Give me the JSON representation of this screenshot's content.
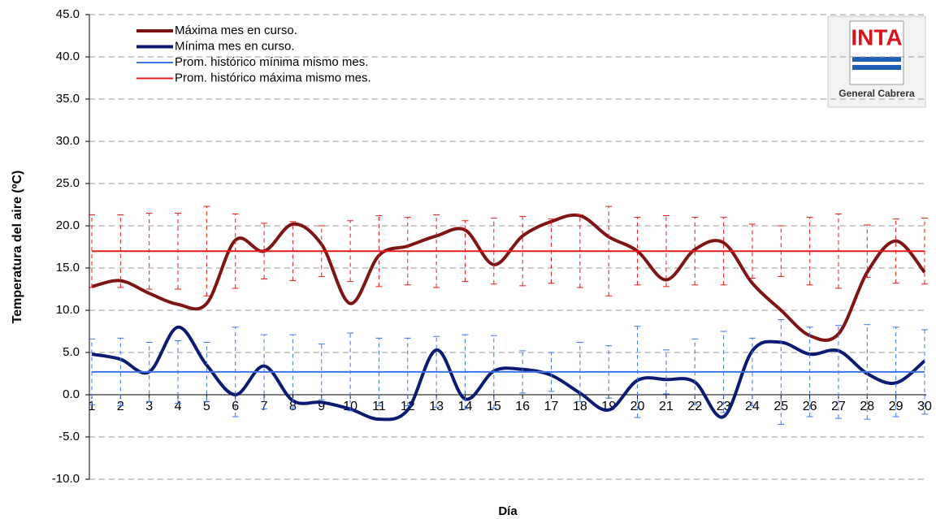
{
  "chart_data": {
    "type": "line",
    "ylabel": "Temperatura del aire (ºC)",
    "xlabel": "Día",
    "logo_text": "INTA",
    "logo_caption": "General Cabrera",
    "categories": [
      "1",
      "2",
      "3",
      "4",
      "5",
      "6",
      "7",
      "8",
      "9",
      "10",
      "11",
      "12",
      "13",
      "14",
      "15",
      "16",
      "17",
      "18",
      "19",
      "20",
      "21",
      "22",
      "23",
      "24",
      "25",
      "26",
      "27",
      "28",
      "29",
      "30"
    ],
    "series": [
      {
        "name": "Máxima mes en curso.",
        "color": "#7f1414",
        "width": 4,
        "values": [
          12.8,
          13.5,
          12.0,
          10.7,
          10.8,
          18.3,
          17.0,
          20.2,
          17.8,
          10.8,
          16.5,
          17.6,
          18.8,
          19.5,
          15.4,
          18.8,
          20.5,
          21.2,
          18.7,
          17.0,
          13.6,
          17.2,
          18.0,
          13.2,
          10.0,
          7.0,
          7.2,
          14.5,
          18.2,
          14.5
        ]
      },
      {
        "name": "Mínima mes en curso.",
        "color": "#0c1a72",
        "width": 4,
        "values": [
          4.8,
          4.2,
          2.7,
          8.0,
          3.5,
          0.0,
          3.4,
          -0.7,
          -0.9,
          -1.7,
          -2.9,
          -1.8,
          5.3,
          -0.5,
          2.8,
          3.0,
          2.3,
          0.2,
          -1.8,
          1.7,
          1.8,
          1.5,
          -2.6,
          5.2,
          6.2,
          4.8,
          5.2,
          2.5,
          1.4,
          4.0
        ]
      },
      {
        "name": "Prom. histórico mínima mismo mes.",
        "color": "#3f74e6",
        "width": 2,
        "values": [
          2.7,
          2.7,
          2.7,
          2.7,
          2.7,
          2.7,
          2.7,
          2.7,
          2.7,
          2.7,
          2.7,
          2.7,
          2.7,
          2.7,
          2.7,
          2.7,
          2.7,
          2.7,
          2.7,
          2.7,
          2.7,
          2.7,
          2.7,
          2.7,
          2.7,
          2.7,
          2.7,
          2.7,
          2.7,
          2.7
        ],
        "errors": [
          3.9,
          4.0,
          3.5,
          3.7,
          3.5,
          5.3,
          4.4,
          4.4,
          3.3,
          4.6,
          4.0,
          4.0,
          4.2,
          4.4,
          4.3,
          2.5,
          2.3,
          3.5,
          3.1,
          5.4,
          2.6,
          3.9,
          4.8,
          4.0,
          6.2,
          5.3,
          5.5,
          5.6,
          5.3,
          5.0
        ]
      },
      {
        "name": "Prom. histórico máxima mismo mes.",
        "color": "#e81a1a",
        "width": 2,
        "values": [
          17.0,
          17.0,
          17.0,
          17.0,
          17.0,
          17.0,
          17.0,
          17.0,
          17.0,
          17.0,
          17.0,
          17.0,
          17.0,
          17.0,
          17.0,
          17.0,
          17.0,
          17.0,
          17.0,
          17.0,
          17.0,
          17.0,
          17.0,
          17.0,
          17.0,
          17.0,
          17.0,
          17.0,
          17.0,
          17.0
        ],
        "errors": [
          4.3,
          4.3,
          4.5,
          4.5,
          5.3,
          4.4,
          3.3,
          3.5,
          3.0,
          3.6,
          4.2,
          4.0,
          4.3,
          3.6,
          3.9,
          4.1,
          3.8,
          4.3,
          5.3,
          4.0,
          4.2,
          4.0,
          4.0,
          3.2,
          3.0,
          4.0,
          4.4,
          3.1,
          3.8,
          3.9
        ]
      }
    ],
    "ylim": [
      -10,
      45
    ],
    "yticks": [
      {
        "value": -10,
        "label": "-10.0"
      },
      {
        "value": -5,
        "label": "-5.0"
      },
      {
        "value": 0,
        "label": "0.0"
      },
      {
        "value": 5,
        "label": "5.0"
      },
      {
        "value": 10,
        "label": "10.0"
      },
      {
        "value": 15,
        "label": "15.0"
      },
      {
        "value": 20,
        "label": "20.0"
      },
      {
        "value": 25,
        "label": "25.0"
      },
      {
        "value": 30,
        "label": "30.0"
      },
      {
        "value": 35,
        "label": "35.0"
      },
      {
        "value": 40,
        "label": "40.0"
      },
      {
        "value": 45,
        "label": "45.0"
      }
    ],
    "grid": true,
    "legend": "upper left"
  }
}
